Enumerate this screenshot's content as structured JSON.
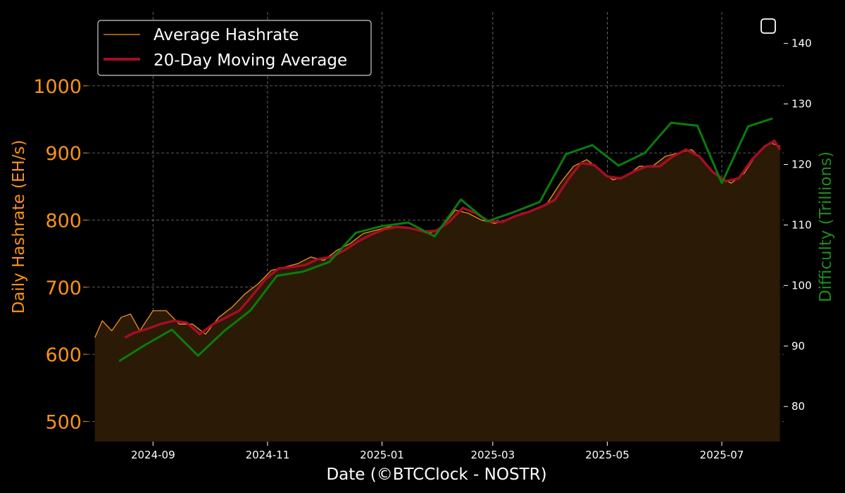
{
  "chart_data": {
    "type": "line",
    "xlabel": "Date (©BTCClock - NOSTR)",
    "ylabel_left": "Daily Hashrate (EH/s)",
    "ylabel_right": "Difficulty (Trillions)",
    "x_range": [
      "2024-07-28",
      "2025-08-03"
    ],
    "ylim_left": [
      470,
      1110
    ],
    "ylim_right": [
      74.2,
      145.2
    ],
    "x_ticks": [
      "2024-09",
      "2024-11",
      "2025-01",
      "2025-03",
      "2025-05",
      "2025-07"
    ],
    "y_ticks_left": [
      500,
      600,
      700,
      800,
      900,
      1000
    ],
    "y_ticks_right": [
      80,
      90,
      100,
      110,
      120,
      130,
      140
    ],
    "grid": true,
    "legend_position": "top-left",
    "colors": {
      "hashrate": "#f7931a",
      "moving_average": "#a50d25",
      "difficulty": "#0a7d0a",
      "fill": "#2b1a05",
      "grid": "#7a7a7a"
    },
    "series": [
      {
        "name": "Average Hashrate",
        "role": "daily",
        "points": [
          [
            "2024-08-01",
            625
          ],
          [
            "2024-08-05",
            650
          ],
          [
            "2024-08-10",
            635
          ],
          [
            "2024-08-15",
            655
          ],
          [
            "2024-08-20",
            660
          ],
          [
            "2024-08-25",
            635
          ],
          [
            "2024-09-01",
            665
          ],
          [
            "2024-09-08",
            665
          ],
          [
            "2024-09-15",
            645
          ],
          [
            "2024-09-22",
            645
          ],
          [
            "2024-09-29",
            630
          ],
          [
            "2024-10-06",
            655
          ],
          [
            "2024-10-13",
            670
          ],
          [
            "2024-10-20",
            690
          ],
          [
            "2024-10-27",
            705
          ],
          [
            "2024-11-03",
            725
          ],
          [
            "2024-11-10",
            730
          ],
          [
            "2024-11-17",
            735
          ],
          [
            "2024-11-24",
            745
          ],
          [
            "2024-12-01",
            740
          ],
          [
            "2024-12-08",
            755
          ],
          [
            "2024-12-15",
            765
          ],
          [
            "2024-12-22",
            780
          ],
          [
            "2024-12-29",
            785
          ],
          [
            "2025-01-05",
            790
          ],
          [
            "2025-01-12",
            790
          ],
          [
            "2025-01-19",
            785
          ],
          [
            "2025-01-26",
            780
          ],
          [
            "2025-02-02",
            790
          ],
          [
            "2025-02-09",
            815
          ],
          [
            "2025-02-16",
            810
          ],
          [
            "2025-02-23",
            800
          ],
          [
            "2025-03-02",
            795
          ],
          [
            "2025-03-09",
            800
          ],
          [
            "2025-03-16",
            810
          ],
          [
            "2025-03-23",
            815
          ],
          [
            "2025-03-30",
            825
          ],
          [
            "2025-04-06",
            855
          ],
          [
            "2025-04-13",
            880
          ],
          [
            "2025-04-20",
            890
          ],
          [
            "2025-04-27",
            875
          ],
          [
            "2025-05-04",
            860
          ],
          [
            "2025-05-11",
            865
          ],
          [
            "2025-05-18",
            880
          ],
          [
            "2025-05-25",
            880
          ],
          [
            "2025-06-01",
            895
          ],
          [
            "2025-06-08",
            900
          ],
          [
            "2025-06-15",
            905
          ],
          [
            "2025-06-22",
            885
          ],
          [
            "2025-06-29",
            865
          ],
          [
            "2025-07-06",
            855
          ],
          [
            "2025-07-13",
            870
          ],
          [
            "2025-07-20",
            900
          ],
          [
            "2025-07-27",
            915
          ],
          [
            "2025-08-01",
            910
          ]
        ]
      },
      {
        "name": "20-Day Moving Average",
        "role": "moving_average",
        "points": [
          [
            "2024-08-17",
            625
          ],
          [
            "2024-08-22",
            632
          ],
          [
            "2024-08-29",
            638
          ],
          [
            "2024-09-05",
            645
          ],
          [
            "2024-09-12",
            650
          ],
          [
            "2024-09-19",
            647
          ],
          [
            "2024-09-26",
            630
          ],
          [
            "2024-10-03",
            645
          ],
          [
            "2024-10-10",
            655
          ],
          [
            "2024-10-17",
            665
          ],
          [
            "2024-10-24",
            688
          ],
          [
            "2024-10-31",
            712
          ],
          [
            "2024-11-07",
            728
          ],
          [
            "2024-11-14",
            730
          ],
          [
            "2024-11-21",
            733
          ],
          [
            "2024-11-28",
            742
          ],
          [
            "2024-12-05",
            745
          ],
          [
            "2024-12-12",
            755
          ],
          [
            "2024-12-19",
            768
          ],
          [
            "2024-12-26",
            778
          ],
          [
            "2025-01-02",
            786
          ],
          [
            "2025-01-09",
            790
          ],
          [
            "2025-01-16",
            788
          ],
          [
            "2025-01-23",
            783
          ],
          [
            "2025-01-30",
            784
          ],
          [
            "2025-02-06",
            798
          ],
          [
            "2025-02-13",
            818
          ],
          [
            "2025-02-20",
            810
          ],
          [
            "2025-02-27",
            798
          ],
          [
            "2025-03-06",
            797
          ],
          [
            "2025-03-13",
            806
          ],
          [
            "2025-03-20",
            812
          ],
          [
            "2025-03-27",
            820
          ],
          [
            "2025-04-03",
            830
          ],
          [
            "2025-04-10",
            860
          ],
          [
            "2025-04-17",
            885
          ],
          [
            "2025-04-24",
            882
          ],
          [
            "2025-05-01",
            865
          ],
          [
            "2025-05-08",
            862
          ],
          [
            "2025-05-15",
            872
          ],
          [
            "2025-05-22",
            880
          ],
          [
            "2025-05-29",
            880
          ],
          [
            "2025-06-05",
            895
          ],
          [
            "2025-06-12",
            905
          ],
          [
            "2025-06-19",
            895
          ],
          [
            "2025-06-26",
            872
          ],
          [
            "2025-07-03",
            858
          ],
          [
            "2025-07-10",
            862
          ],
          [
            "2025-07-17",
            890
          ],
          [
            "2025-07-24",
            910
          ],
          [
            "2025-07-29",
            918
          ],
          [
            "2025-08-01",
            905
          ]
        ]
      },
      {
        "name": "Difficulty",
        "role": "difficulty",
        "points": [
          [
            "2024-08-14",
            87.5
          ],
          [
            "2024-08-28",
            90.2
          ],
          [
            "2024-09-11",
            92.7
          ],
          [
            "2024-09-25",
            88.4
          ],
          [
            "2024-10-09",
            92.5
          ],
          [
            "2024-10-23",
            95.9
          ],
          [
            "2024-11-06",
            101.6
          ],
          [
            "2024-11-20",
            102.3
          ],
          [
            "2024-12-04",
            103.9
          ],
          [
            "2024-12-18",
            108.7
          ],
          [
            "2025-01-01",
            109.8
          ],
          [
            "2025-01-15",
            110.4
          ],
          [
            "2025-01-29",
            108.1
          ],
          [
            "2025-02-12",
            114.2
          ],
          [
            "2025-02-26",
            110.6
          ],
          [
            "2025-03-12",
            112.1
          ],
          [
            "2025-03-26",
            113.8
          ],
          [
            "2025-04-09",
            121.7
          ],
          [
            "2025-04-23",
            123.2
          ],
          [
            "2025-05-07",
            119.8
          ],
          [
            "2025-05-21",
            121.9
          ],
          [
            "2025-06-04",
            126.9
          ],
          [
            "2025-06-18",
            126.4
          ],
          [
            "2025-07-01",
            116.9
          ],
          [
            "2025-07-15",
            126.3
          ],
          [
            "2025-07-28",
            127.6
          ]
        ]
      }
    ]
  }
}
